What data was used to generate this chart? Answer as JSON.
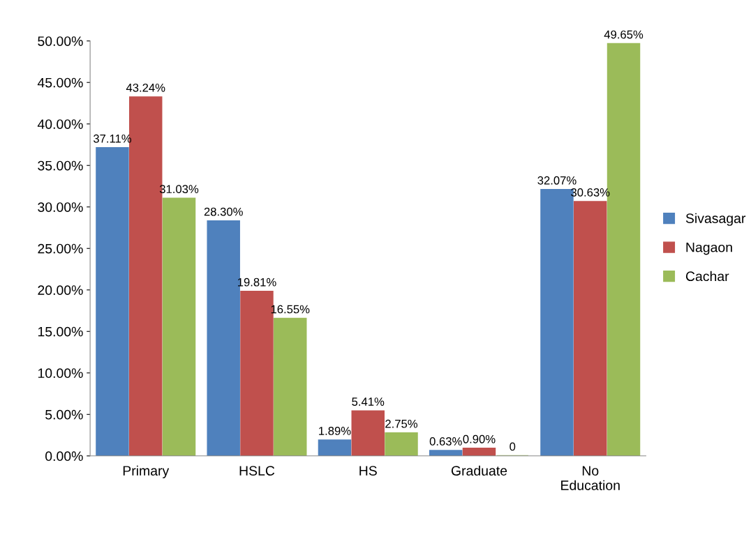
{
  "chart_data": {
    "type": "bar",
    "categories": [
      "Primary",
      "HSLC",
      "HS",
      "Graduate",
      "No\nEducation"
    ],
    "series": [
      {
        "name": "Sivasagar",
        "color": "#4f81bd",
        "values": [
          37.11,
          28.3,
          1.89,
          0.63,
          32.07
        ],
        "value_labels": [
          "37.11%",
          "28.30%",
          "1.89%",
          "0.63%",
          "32.07%"
        ]
      },
      {
        "name": "Nagaon",
        "color": "#c0504d",
        "values": [
          43.24,
          19.81,
          5.41,
          0.9,
          30.63
        ],
        "value_labels": [
          "43.24%",
          "19.81%",
          "5.41%",
          "0.90%",
          "30.63%"
        ]
      },
      {
        "name": "Cachar",
        "color": "#9bbb59",
        "values": [
          31.03,
          16.55,
          2.75,
          0,
          49.65
        ],
        "value_labels": [
          "31.03%",
          "16.55%",
          "2.75%",
          "0",
          "49.65%"
        ]
      }
    ],
    "ylim": [
      0,
      50
    ],
    "yticks": [
      {
        "value": 0,
        "label": "0.00%"
      },
      {
        "value": 5,
        "label": "5.00%"
      },
      {
        "value": 10,
        "label": "10.00%"
      },
      {
        "value": 15,
        "label": "15.00%"
      },
      {
        "value": 20,
        "label": "20.00%"
      },
      {
        "value": 25,
        "label": "25.00%"
      },
      {
        "value": 30,
        "label": "30.00%"
      },
      {
        "value": 35,
        "label": "35.00%"
      },
      {
        "value": 40,
        "label": "40.00%"
      },
      {
        "value": 45,
        "label": "45.00%"
      },
      {
        "value": 50,
        "label": "50.00%"
      }
    ],
    "grid": false,
    "legend": "right"
  }
}
